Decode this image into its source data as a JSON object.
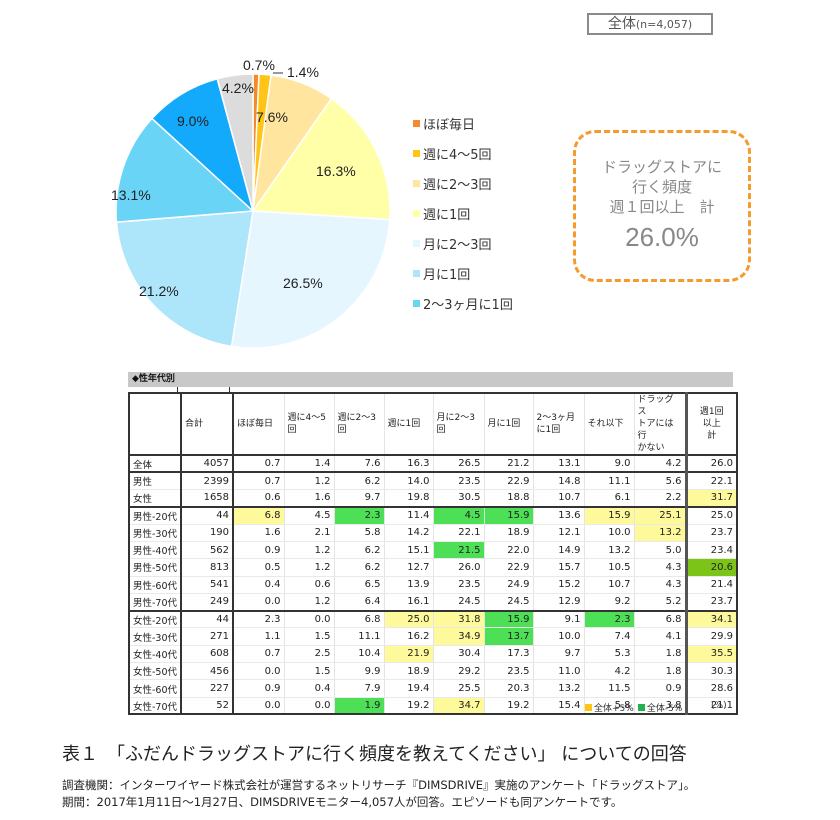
{
  "sample_box": {
    "label": "全体",
    "n": "(n=4,057)"
  },
  "chart_data": [
    {
      "type": "pie",
      "title": "全体(n=4,057)",
      "categories": [
        "ほぼ毎日",
        "週に4〜5回",
        "週に2〜3回",
        "週に1回",
        "月に2〜3回",
        "月に1回",
        "2〜3ヶ月に1回",
        "それ以下",
        "ドラッグストアには行かない"
      ],
      "values": [
        0.7,
        1.4,
        7.6,
        16.3,
        26.5,
        21.2,
        13.1,
        9.0,
        4.2
      ],
      "labels": [
        "0.7%",
        "1.4%",
        "7.6%",
        "16.3%",
        "26.5%",
        "21.2%",
        "13.1%",
        "9.0%",
        "4.2%"
      ],
      "colors": [
        "#f58a2c",
        "#ffc414",
        "#ffe59e",
        "#ffffa8",
        "#e6f6fe",
        "#ade6fb",
        "#6ad4f7",
        "#14aafc",
        "#dcdcdc"
      ],
      "legend_position": "right",
      "annotation": "ドラッグストアに行く頻度 週１回以上 計 26.0%"
    },
    {
      "type": "table",
      "title": "◆性年代別",
      "columns": [
        "",
        "合計",
        "ほぼ毎日",
        "週に4〜5回",
        "週に2〜3回",
        "週に1回",
        "月に2〜3回",
        "月に1回",
        "2〜3ヶ月に1回",
        "それ以下",
        "ドラッグストアには行かない",
        "週1回以上計"
      ],
      "unit": "(%)"
    }
  ],
  "pie_labels": [
    "0.7%",
    "1.4%",
    "7.6%",
    "16.3%",
    "26.5%",
    "21.2%",
    "13.1%",
    "9.0%",
    "4.2%"
  ],
  "legend": [
    {
      "label": "ほぼ毎日",
      "color": "#f58a2c"
    },
    {
      "label": "週に4〜5回",
      "color": "#ffc414"
    },
    {
      "label": "週に2〜3回",
      "color": "#ffe59e"
    },
    {
      "label": "週に1回",
      "color": "#ffffa8"
    },
    {
      "label": "月に2〜3回",
      "color": "#e6f6fe"
    },
    {
      "label": "月に1回",
      "color": "#ade6fb"
    },
    {
      "label": "2〜3ヶ月に1回",
      "color": "#6ad4f7"
    }
  ],
  "highlight": {
    "line1": "ドラッグストアに",
    "line2": "行く頻度",
    "line3": "週１回以上　計",
    "value": "26.0%"
  },
  "table": {
    "section_title": "◆性年代別",
    "headers": [
      "",
      "合計",
      "ほぼ毎日",
      "週に4〜5回",
      "週に2〜3回",
      "週に1回",
      "月に2〜3回",
      "月に1回",
      "2〜3ヶ月に1回",
      "それ以下",
      "ドラッグストアには行かない",
      "週1回以上計"
    ],
    "header_display": [
      "",
      "合計",
      "ほぼ毎日",
      "週に4〜5\n回",
      "週に2〜3\n回",
      "週に1回",
      "月に2〜3\n回",
      "月に1回",
      "2〜3ヶ月\nに1回",
      "それ以下",
      "ドラッグス\nトアには行\nかない",
      "週1回\n以上\n計"
    ],
    "rows": [
      {
        "label": "全体",
        "values": [
          "4057",
          "0.7",
          "1.4",
          "7.6",
          "16.3",
          "26.5",
          "21.2",
          "13.1",
          "9.0",
          "4.2",
          "26.0"
        ],
        "hl": [
          "",
          "",
          "",
          "",
          "",
          "",
          "",
          "",
          "",
          "",
          ""
        ]
      },
      {
        "label": "男性",
        "values": [
          "2399",
          "0.7",
          "1.2",
          "6.2",
          "14.0",
          "23.5",
          "22.9",
          "14.8",
          "11.1",
          "5.6",
          "22.1"
        ],
        "hl": [
          "",
          "",
          "",
          "",
          "",
          "",
          "",
          "",
          "",
          "",
          ""
        ]
      },
      {
        "label": "女性",
        "values": [
          "1658",
          "0.6",
          "1.6",
          "9.7",
          "19.8",
          "30.5",
          "18.8",
          "10.7",
          "6.1",
          "2.2",
          "31.7"
        ],
        "hl": [
          "",
          "",
          "",
          "",
          "",
          "",
          "",
          "",
          "",
          "",
          "y"
        ]
      },
      {
        "label": "男性-20代",
        "values": [
          "44",
          "6.8",
          "4.5",
          "2.3",
          "11.4",
          "4.5",
          "15.9",
          "13.6",
          "15.9",
          "25.1",
          "25.0"
        ],
        "hl": [
          "",
          "y",
          "",
          "g",
          "",
          "g",
          "g",
          "",
          "y",
          "y",
          ""
        ]
      },
      {
        "label": "男性-30代",
        "values": [
          "190",
          "1.6",
          "2.1",
          "5.8",
          "14.2",
          "22.1",
          "18.9",
          "12.1",
          "10.0",
          "13.2",
          "23.7"
        ],
        "hl": [
          "",
          "",
          "",
          "",
          "",
          "",
          "",
          "",
          "",
          "y",
          ""
        ]
      },
      {
        "label": "男性-40代",
        "values": [
          "562",
          "0.9",
          "1.2",
          "6.2",
          "15.1",
          "21.5",
          "22.0",
          "14.9",
          "13.2",
          "5.0",
          "23.4"
        ],
        "hl": [
          "",
          "",
          "",
          "",
          "",
          "g",
          "",
          "",
          "",
          "",
          ""
        ]
      },
      {
        "label": "男性-50代",
        "values": [
          "813",
          "0.5",
          "1.2",
          "6.2",
          "12.7",
          "26.0",
          "22.9",
          "15.7",
          "10.5",
          "4.3",
          "20.6"
        ],
        "hl": [
          "",
          "",
          "",
          "",
          "",
          "",
          "",
          "",
          "",
          "",
          "dg"
        ]
      },
      {
        "label": "男性-60代",
        "values": [
          "541",
          "0.4",
          "0.6",
          "6.5",
          "13.9",
          "23.5",
          "24.9",
          "15.2",
          "10.7",
          "4.3",
          "21.4"
        ],
        "hl": [
          "",
          "",
          "",
          "",
          "",
          "",
          "",
          "",
          "",
          "",
          ""
        ]
      },
      {
        "label": "男性-70代",
        "values": [
          "249",
          "0.0",
          "1.2",
          "6.4",
          "16.1",
          "24.5",
          "24.5",
          "12.9",
          "9.2",
          "5.2",
          "23.7"
        ],
        "hl": [
          "",
          "",
          "",
          "",
          "",
          "",
          "",
          "",
          "",
          "",
          ""
        ]
      },
      {
        "label": "女性-20代",
        "values": [
          "44",
          "2.3",
          "0.0",
          "6.8",
          "25.0",
          "31.8",
          "15.9",
          "9.1",
          "2.3",
          "6.8",
          "34.1"
        ],
        "hl": [
          "",
          "",
          "",
          "",
          "y",
          "y",
          "g",
          "",
          "g",
          "",
          "y"
        ]
      },
      {
        "label": "女性-30代",
        "values": [
          "271",
          "1.1",
          "1.5",
          "11.1",
          "16.2",
          "34.9",
          "13.7",
          "10.0",
          "7.4",
          "4.1",
          "29.9"
        ],
        "hl": [
          "",
          "",
          "",
          "",
          "",
          "y",
          "g",
          "",
          "",
          "",
          ""
        ]
      },
      {
        "label": "女性-40代",
        "values": [
          "608",
          "0.7",
          "2.5",
          "10.4",
          "21.9",
          "30.4",
          "17.3",
          "9.7",
          "5.3",
          "1.8",
          "35.5"
        ],
        "hl": [
          "",
          "",
          "",
          "",
          "y",
          "",
          "",
          "",
          "",
          "",
          "y"
        ]
      },
      {
        "label": "女性-50代",
        "values": [
          "456",
          "0.0",
          "1.5",
          "9.9",
          "18.9",
          "29.2",
          "23.5",
          "11.0",
          "4.2",
          "1.8",
          "30.3"
        ],
        "hl": [
          "",
          "",
          "",
          "",
          "",
          "",
          "",
          "",
          "",
          "",
          ""
        ]
      },
      {
        "label": "女性-60代",
        "values": [
          "227",
          "0.9",
          "0.4",
          "7.9",
          "19.4",
          "25.5",
          "20.3",
          "13.2",
          "11.5",
          "0.9",
          "28.6"
        ],
        "hl": [
          "",
          "",
          "",
          "",
          "",
          "",
          "",
          "",
          "",
          "",
          ""
        ]
      },
      {
        "label": "女性-70代",
        "values": [
          "52",
          "0.0",
          "0.0",
          "1.9",
          "19.2",
          "34.7",
          "19.2",
          "15.4",
          "5.8",
          "3.8",
          "21.1"
        ],
        "hl": [
          "",
          "",
          "",
          "g",
          "",
          "y",
          "",
          "",
          "",
          "",
          ""
        ]
      }
    ],
    "legend": [
      {
        "label": "全体+5%",
        "color": "#ffc414"
      },
      {
        "label": "全体-5%",
        "color": "#22b14c"
      }
    ],
    "unit": "(%)"
  },
  "caption": "表１　「ふだんドラッグストアに行く頻度を教えてください」 についての回答",
  "source_line1": "調査機関：インターワイヤード株式会社が運営するネットリサーチ『DIMSDRIVE』実施のアンケート「ドラッグストア」。",
  "source_line2": "期間：2017年1月11日～1月27日、DIMSDRIVEモニター4,057人が回答。エピソードも同アンケートです。"
}
